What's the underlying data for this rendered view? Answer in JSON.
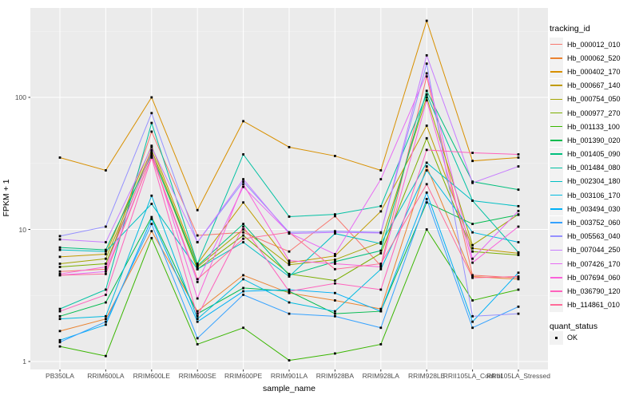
{
  "figure": {
    "background": "#FFFFFF",
    "panel_background": "#EBEBEB",
    "grid_major_color": "#FFFFFF",
    "grid_minor_color": "#F5F5F5",
    "tick_mark_color": "#333333",
    "tick_label_color": "#4D4D4D",
    "marker_color": "#000000"
  },
  "chart_data": {
    "type": "line",
    "title": "",
    "xlabel": "sample_name",
    "ylabel": "FPKM + 1",
    "y_scale": "log10",
    "y_ticks": [
      "1",
      "10",
      "100"
    ],
    "y_minor_breaks": [
      3.1623,
      31.623,
      316.23
    ],
    "ylim": [
      0.87,
      475
    ],
    "grid": true,
    "legend_position": "right",
    "marker": "filled-square",
    "categories": [
      "PB350LA",
      "RRIM600LA",
      "RRIM600LE",
      "RRIM600SE",
      "RRIM600PE",
      "RRIM901LA",
      "RRIM928BA",
      "RRIM928LA",
      "RRIM928LE",
      "RRII105LA_Control",
      "RRII105LA_Stressed"
    ],
    "series": [
      {
        "name": "Hb_000012_010",
        "color": "#F8766D",
        "values": [
          4.8,
          5.0,
          55,
          9.0,
          9.5,
          6.8,
          12.6,
          5.3,
          144,
          4.5,
          4.3
        ]
      },
      {
        "name": "Hb_000062_520",
        "color": "#EA8331",
        "values": [
          1.7,
          2.1,
          9.7,
          2.4,
          4.5,
          3.3,
          2.9,
          2.5,
          30,
          4.4,
          4.2
        ]
      },
      {
        "name": "Hb_000402_170",
        "color": "#D89000",
        "values": [
          35,
          28,
          100,
          14,
          66,
          42,
          36,
          28,
          380,
          33,
          35
        ]
      },
      {
        "name": "Hb_000667_140",
        "color": "#C09B00",
        "values": [
          6.2,
          6.5,
          43,
          5.5,
          16,
          5.6,
          6.3,
          13.7,
          61,
          7.2,
          6.6
        ]
      },
      {
        "name": "Hb_000754_050",
        "color": "#A3A500",
        "values": [
          5.5,
          6.0,
          40,
          5.2,
          10,
          5.4,
          5.9,
          8.0,
          100,
          7.6,
          13
        ]
      },
      {
        "name": "Hb_000977_270",
        "color": "#7CAE00",
        "values": [
          5.2,
          5.5,
          38,
          5.0,
          9.0,
          4.6,
          4.1,
          6.6,
          49,
          6.8,
          6.4
        ]
      },
      {
        "name": "Hb_001133_100",
        "color": "#39B600",
        "values": [
          1.3,
          1.1,
          8.6,
          1.35,
          1.8,
          1.02,
          1.15,
          1.35,
          10,
          2.9,
          3.5
        ]
      },
      {
        "name": "Hb_001390_020",
        "color": "#00BB4E",
        "values": [
          2.2,
          2.8,
          12.4,
          2.3,
          3.6,
          3.4,
          2.3,
          2.4,
          16,
          11,
          12.9
        ]
      },
      {
        "name": "Hb_001405_090",
        "color": "#00BF7D",
        "values": [
          7.3,
          7.0,
          37,
          5.3,
          11,
          4.5,
          5.7,
          6.9,
          112,
          23,
          20
        ]
      },
      {
        "name": "Hb_001484_080",
        "color": "#00C1A3",
        "values": [
          2.5,
          3.5,
          64,
          5.5,
          37,
          12.5,
          13,
          15,
          105,
          16.5,
          6.7
        ]
      },
      {
        "name": "Hb_002304_180",
        "color": "#00BFC4",
        "values": [
          7.0,
          6.8,
          15.6,
          5.0,
          8.0,
          4.4,
          9.3,
          7.8,
          32,
          16.5,
          15
        ]
      },
      {
        "name": "Hb_003106_170",
        "color": "#00BAE0",
        "values": [
          2.1,
          2.2,
          18,
          2.1,
          4.2,
          2.8,
          2.4,
          5.0,
          28,
          9.5,
          8.0
        ]
      },
      {
        "name": "Hb_003494_030",
        "color": "#00B0F6",
        "values": [
          1.45,
          1.9,
          12,
          2.0,
          3.4,
          3.5,
          3.3,
          2.4,
          19,
          2.0,
          4.7
        ]
      },
      {
        "name": "Hb_003752_060",
        "color": "#35A2FF",
        "values": [
          1.4,
          2.0,
          11,
          1.5,
          3.2,
          2.3,
          2.2,
          1.8,
          17,
          1.8,
          2.6
        ]
      },
      {
        "name": "Hb_005563_040",
        "color": "#9590FF",
        "values": [
          8.9,
          10.5,
          76,
          8.0,
          23,
          9.5,
          9.7,
          9.5,
          180,
          2.2,
          2.3
        ]
      },
      {
        "name": "Hb_007044_250",
        "color": "#C77CFF",
        "values": [
          8.4,
          8.0,
          42,
          8.0,
          24,
          9.3,
          9.5,
          9.4,
          208,
          22.5,
          30
        ]
      },
      {
        "name": "Hb_007426_170",
        "color": "#E76BF3",
        "values": [
          4.5,
          4.8,
          36,
          4.0,
          21,
          9.4,
          6.5,
          24,
          152,
          6.0,
          13.8
        ]
      },
      {
        "name": "Hb_007694_060",
        "color": "#FA62DB",
        "values": [
          4.6,
          5.2,
          39,
          3.0,
          22,
          5.8,
          5.5,
          5.2,
          95,
          5.6,
          10.5
        ]
      },
      {
        "name": "Hb_036790_120",
        "color": "#FF62BC",
        "values": [
          2.4,
          3.2,
          35,
          2.2,
          10.5,
          3.4,
          3.9,
          3.5,
          40,
          38,
          37
        ]
      },
      {
        "name": "Hb_114861_010",
        "color": "#FF6A98",
        "values": [
          4.5,
          4.6,
          36,
          4.2,
          8.5,
          9.5,
          5.0,
          5.5,
          22,
          4.3,
          4.4
        ]
      }
    ],
    "legend": {
      "tracking_title": "tracking_id",
      "quant_title": "quant_status",
      "quant_label": "OK"
    }
  }
}
